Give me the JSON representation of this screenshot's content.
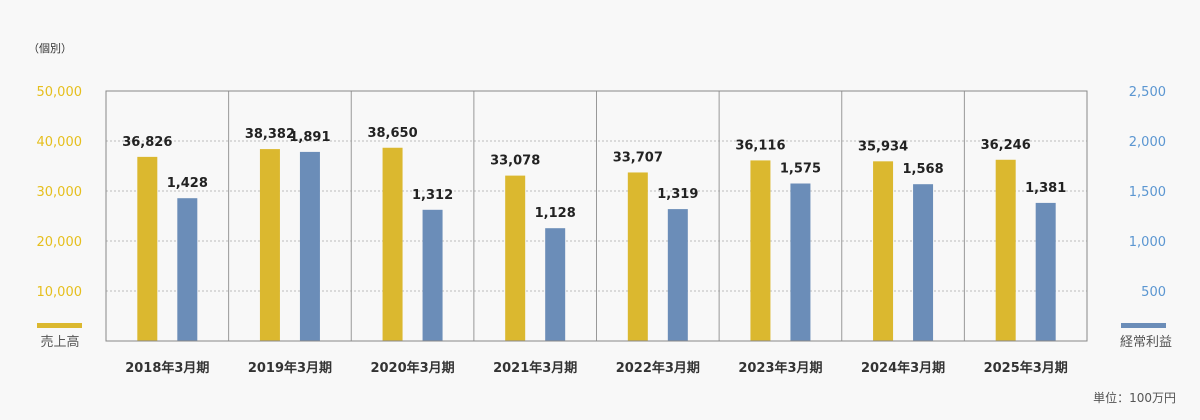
{
  "header": {
    "unit_top": "（個別）",
    "unit_note": "単位：100万円"
  },
  "legend": {
    "left_label": "売上高",
    "right_label": "経常利益"
  },
  "colors": {
    "sales": "#dbb82f",
    "profit": "#6b8db8",
    "left_axis": "#e6bf1d",
    "right_axis": "#5b96d1"
  },
  "chart_data": {
    "type": "bar",
    "categories": [
      "2018年3月期",
      "2019年3月期",
      "2020年3月期",
      "2021年3月期",
      "2022年3月期",
      "2023年3月期",
      "2024年3月期",
      "2025年3月期"
    ],
    "series": [
      {
        "name": "売上高",
        "axis": "left",
        "values": [
          36826,
          38382,
          38650,
          33078,
          33707,
          36116,
          35934,
          36246
        ]
      },
      {
        "name": "経常利益",
        "axis": "right",
        "values": [
          1428,
          1891,
          1312,
          1128,
          1319,
          1575,
          1568,
          1381
        ]
      }
    ],
    "value_labels": {
      "sales": [
        "36,826",
        "38,382",
        "38,650",
        "33,078",
        "33,707",
        "36,116",
        "35,934",
        "36,246"
      ],
      "profit": [
        "1,428",
        "1,891",
        "1,312",
        "1,128",
        "1,319",
        "1,575",
        "1,568",
        "1,381"
      ]
    },
    "left_axis": {
      "ticks": [
        "10,000",
        "20,000",
        "30,000",
        "40,000",
        "50,000"
      ],
      "tick_values": [
        10000,
        20000,
        30000,
        40000,
        50000
      ],
      "ylim": [
        0,
        50000
      ]
    },
    "right_axis": {
      "ticks": [
        "500",
        "1,000",
        "1,500",
        "2,000",
        "2,500"
      ],
      "tick_values": [
        500,
        1000,
        1500,
        2000,
        2500
      ],
      "ylim": [
        0,
        2500
      ]
    },
    "grid": true
  }
}
